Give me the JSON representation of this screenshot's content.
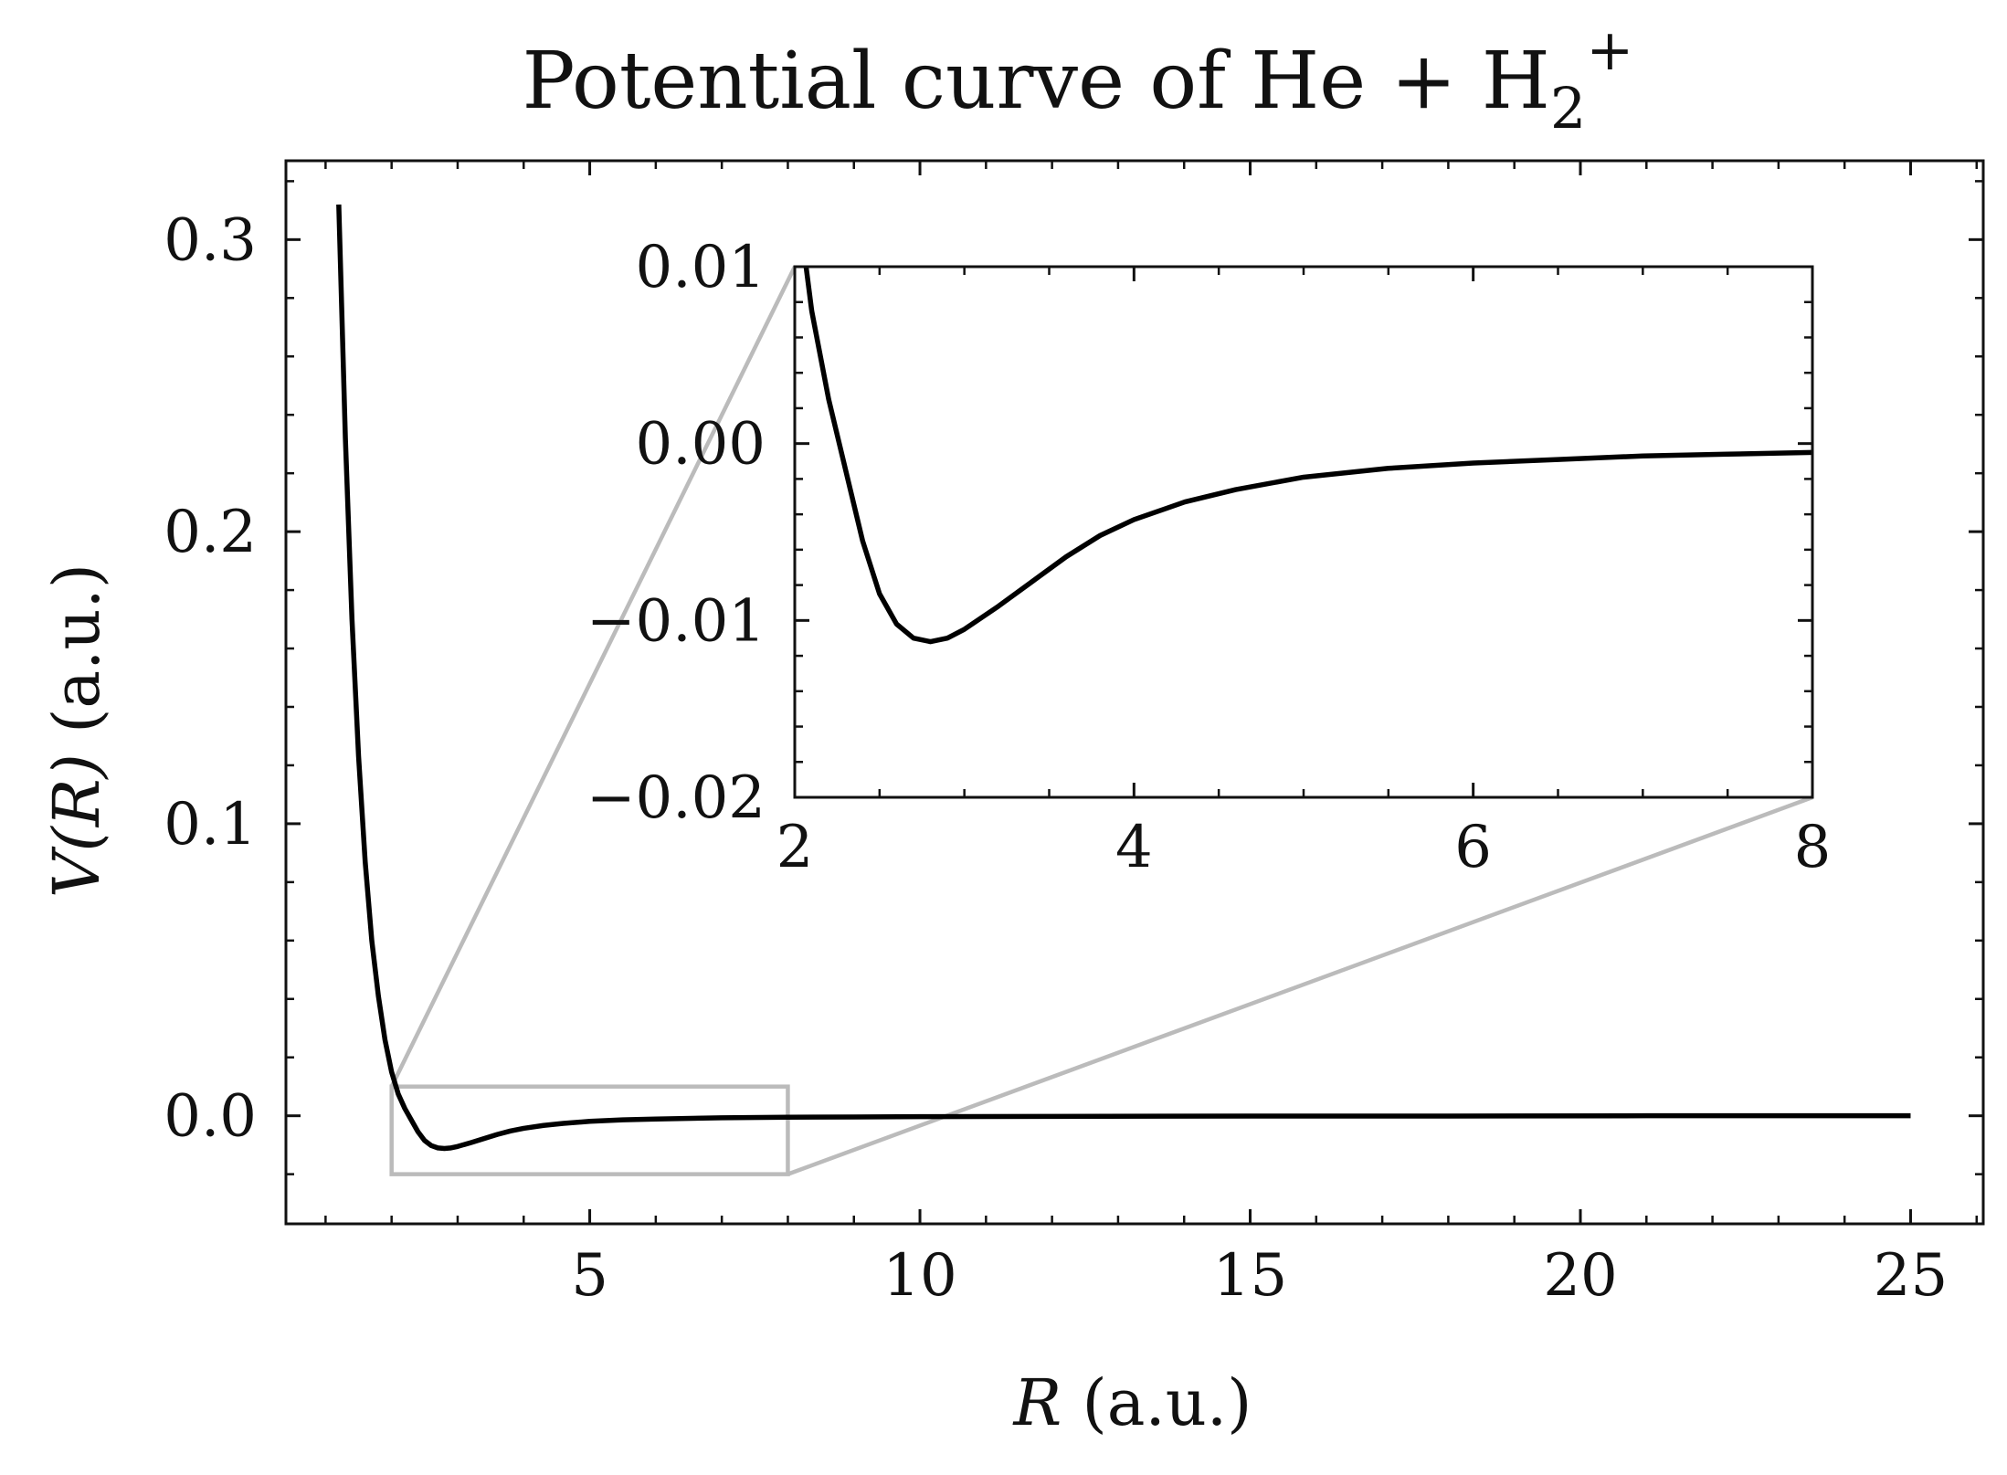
{
  "chart_data": [
    {
      "id": "main",
      "type": "line",
      "title": "Potential curve of He + H",
      "title_sub": "2",
      "title_sup": "+",
      "xlabel_var": "R",
      "xlabel_unit": " (a.u.)",
      "ylabel_var": "V(R)",
      "ylabel_unit": " (a.u.)",
      "xlim": [
        0.4,
        26.1
      ],
      "ylim": [
        -0.037,
        0.327
      ],
      "xticks": [
        5,
        10,
        15,
        20,
        25
      ],
      "xtick_labels": [
        "5",
        "10",
        "15",
        "20",
        "25"
      ],
      "yticks": [
        0.0,
        0.1,
        0.2,
        0.3
      ],
      "ytick_labels": [
        "0.0",
        "0.1",
        "0.2",
        "0.3"
      ],
      "grid": false,
      "series": [
        {
          "color": "#000000",
          "x": [
            1.2,
            1.3,
            1.4,
            1.5,
            1.6,
            1.7,
            1.8,
            1.9,
            2.0,
            2.1,
            2.2,
            2.3,
            2.4,
            2.5,
            2.6,
            2.7,
            2.8,
            2.9,
            3.0,
            3.2,
            3.4,
            3.6,
            3.8,
            4.0,
            4.3,
            4.6,
            5.0,
            5.5,
            6.0,
            7.0,
            8.0,
            9.0,
            10.0,
            12.0,
            15.0,
            18.0,
            21.0,
            25.0
          ],
          "y": [
            0.312,
            0.232,
            0.17,
            0.123,
            0.087,
            0.06,
            0.041,
            0.026,
            0.015,
            0.0075,
            0.0025,
            -0.0015,
            -0.0055,
            -0.0085,
            -0.0102,
            -0.011,
            -0.0112,
            -0.011,
            -0.0105,
            -0.0092,
            -0.0078,
            -0.0064,
            -0.0052,
            -0.0043,
            -0.0033,
            -0.0026,
            -0.0019,
            -0.0014,
            -0.0011,
            -0.0007,
            -0.0005,
            -0.0004,
            -0.0003,
            -0.0002,
            -0.0001,
            -0.0001,
            0.0,
            0.0
          ]
        }
      ],
      "zoom_box": {
        "x": [
          2,
          8
        ],
        "y": [
          -0.02,
          0.01
        ],
        "color": "#bbbbbb"
      }
    },
    {
      "id": "inset",
      "type": "line",
      "xlim": [
        2,
        8
      ],
      "ylim": [
        -0.02,
        0.01
      ],
      "xticks": [
        2,
        4,
        6,
        8
      ],
      "xtick_labels": [
        "2",
        "4",
        "6",
        "8"
      ],
      "yticks": [
        -0.02,
        -0.01,
        0.0,
        0.01
      ],
      "ytick_labels": [
        "−0.02",
        "−0.01",
        "0.00",
        "0.01"
      ],
      "grid": false,
      "series": [
        {
          "color": "#000000",
          "x": [
            2.0,
            2.1,
            2.2,
            2.3,
            2.4,
            2.5,
            2.6,
            2.7,
            2.8,
            2.9,
            3.0,
            3.2,
            3.4,
            3.6,
            3.8,
            4.0,
            4.3,
            4.6,
            5.0,
            5.5,
            6.0,
            6.5,
            7.0,
            7.5,
            8.0
          ],
          "y": [
            0.015,
            0.0075,
            0.0025,
            -0.0015,
            -0.0055,
            -0.0085,
            -0.0102,
            -0.011,
            -0.0112,
            -0.011,
            -0.0105,
            -0.0092,
            -0.0078,
            -0.0064,
            -0.0052,
            -0.0043,
            -0.0033,
            -0.0026,
            -0.0019,
            -0.0014,
            -0.0011,
            -0.0009,
            -0.0007,
            -0.0006,
            -0.0005
          ]
        }
      ]
    }
  ]
}
